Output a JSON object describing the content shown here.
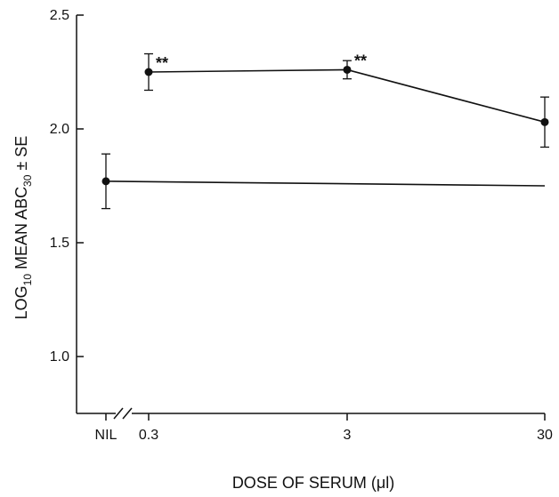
{
  "chart_data": {
    "type": "line",
    "title": "",
    "xlabel": "DOSE OF SERUM (μl)",
    "ylabel_parts": {
      "pre": "LOG",
      "sub1": "10",
      "mid": " MEAN ABC",
      "sub2": "30",
      "post": " ± SE"
    },
    "x_scale": "log",
    "x_categories": [
      "NIL",
      "0.3",
      "3",
      "30"
    ],
    "x_break": "//",
    "ylim": [
      0.75,
      2.5
    ],
    "y_ticks": [
      1.0,
      1.5,
      2.0,
      2.5
    ],
    "y_tick_labels": [
      "1.0",
      "1.5",
      "2.0",
      "2.5"
    ],
    "grid": false,
    "series": [
      {
        "points": [
          {
            "x": "0.3",
            "y": 2.25,
            "err": 0.08,
            "annotation": "**"
          },
          {
            "x": "3",
            "y": 2.26,
            "err": 0.04,
            "annotation": "**"
          },
          {
            "x": "30",
            "y": 2.03,
            "err": 0.11,
            "annotation": ""
          }
        ]
      },
      {
        "points": [
          {
            "x": "NIL",
            "y": 1.77,
            "err": 0.12,
            "annotation": ""
          }
        ],
        "reference_line_y": [
          1.77,
          1.75
        ]
      }
    ]
  }
}
